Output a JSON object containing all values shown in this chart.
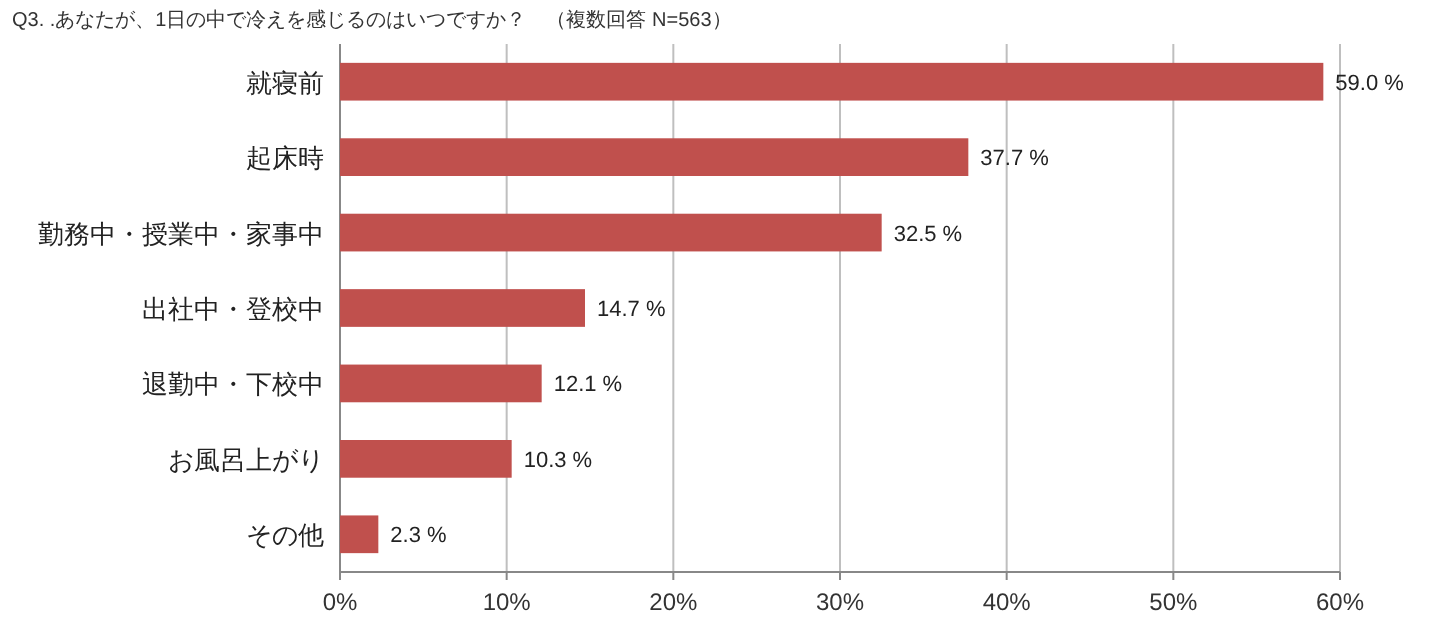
{
  "chart_data": {
    "type": "bar",
    "orientation": "horizontal",
    "title": "Q3. .あなたが、1日の中で冷えを感じるのはいつですか？　（複数回答 N=563）",
    "categories": [
      "就寝前",
      "起床時",
      "勤務中・授業中・家事中",
      "出社中・登校中",
      "退勤中・下校中",
      "お風呂上がり",
      "その他"
    ],
    "values": [
      59.0,
      37.7,
      32.5,
      14.7,
      12.1,
      10.3,
      2.3
    ],
    "value_labels": [
      "59.0 %",
      "37.7 %",
      "32.5 %",
      "14.7 %",
      "12.1 %",
      "10.3 %",
      "2.3 %"
    ],
    "color": "#c0504d",
    "xlim": [
      0,
      60
    ],
    "xticks": [
      {
        "value": 0,
        "label": "0%"
      },
      {
        "value": 10,
        "label": "10%"
      },
      {
        "value": 20,
        "label": "20%"
      },
      {
        "value": 30,
        "label": "30%"
      },
      {
        "value": 40,
        "label": "40%"
      },
      {
        "value": 50,
        "label": "50%"
      },
      {
        "value": 60,
        "label": "60%"
      }
    ],
    "grid": "x"
  }
}
